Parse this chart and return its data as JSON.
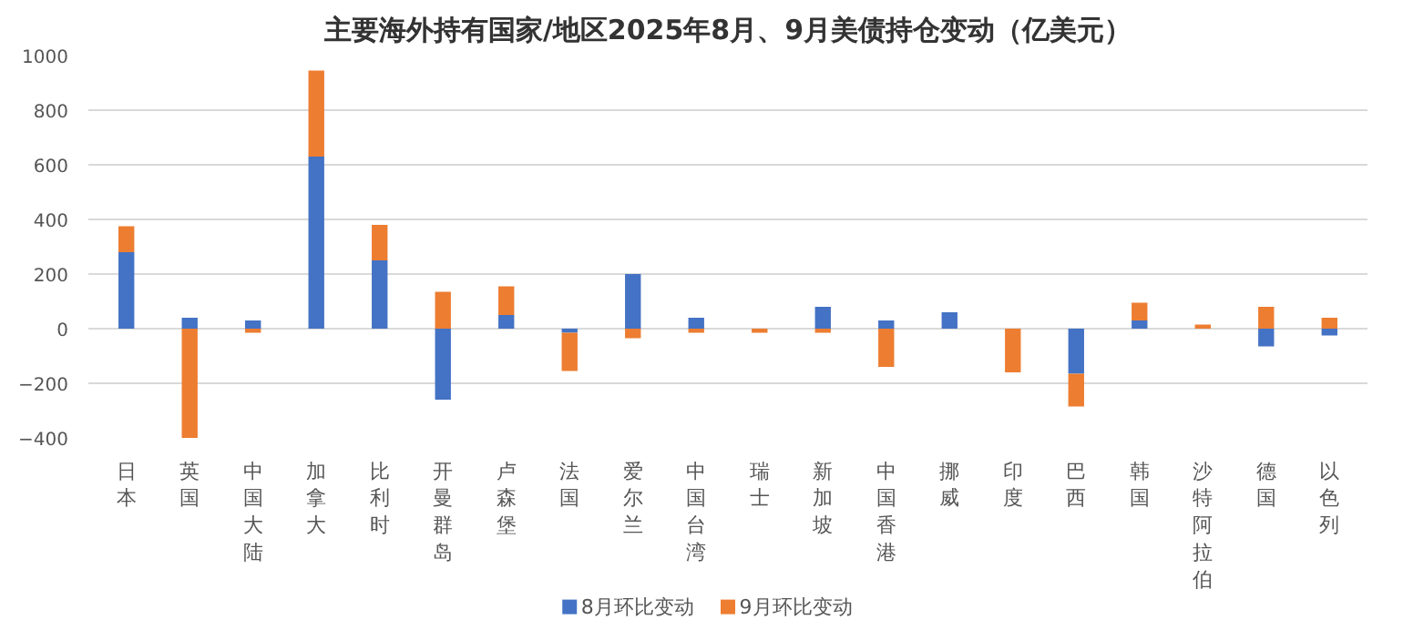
{
  "chart_data": {
    "type": "bar",
    "title": "主要海外持有国家/地区2025年8月、9月美债持仓变动（亿美元）",
    "stacked": true,
    "categories": [
      "日本",
      "英国",
      "中国大陆",
      "加拿大",
      "比利时",
      "开曼群岛",
      "卢森堡",
      "法国",
      "爱尔兰",
      "中国台湾",
      "瑞士",
      "新加坡",
      "中国香港",
      "挪威",
      "印度",
      "巴西",
      "韩国",
      "沙特阿拉伯",
      "德国",
      "以色列"
    ],
    "series": [
      {
        "name": "8月环比变动",
        "color": "#4472c4",
        "values": [
          280,
          40,
          30,
          630,
          250,
          -260,
          50,
          -15,
          200,
          40,
          null,
          80,
          30,
          60,
          null,
          -165,
          30,
          null,
          -65,
          -25
        ]
      },
      {
        "name": "9月环比变动",
        "color": "#ed7d31",
        "values": [
          95,
          -400,
          -15,
          315,
          130,
          135,
          105,
          -140,
          -35,
          -15,
          -15,
          -15,
          -140,
          null,
          -160,
          -120,
          65,
          15,
          80,
          40
        ]
      }
    ],
    "ylim": [
      -400,
      1000
    ],
    "yticks": [
      -400,
      -200,
      0,
      200,
      400,
      600,
      800,
      1000
    ],
    "grid": "y",
    "legend": "bottom"
  }
}
